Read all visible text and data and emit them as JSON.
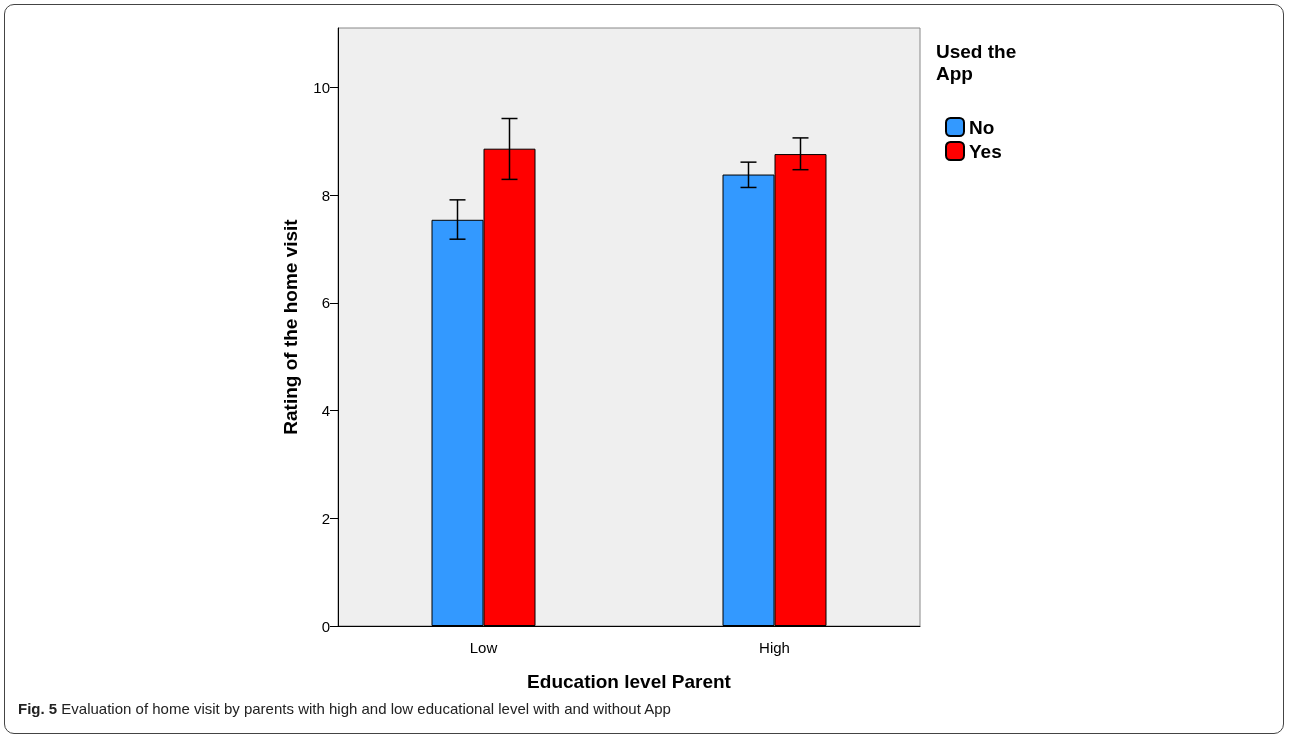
{
  "chart_data": {
    "type": "bar",
    "xlabel": "Education level Parent",
    "ylabel": "Rating of the home visit",
    "legend_title": "Used the App",
    "categories": [
      "Low",
      "High"
    ],
    "series": [
      {
        "name": "No",
        "color": "#3399ff",
        "values": [
          7.54,
          8.38
        ],
        "errors": [
          [
            7.18,
            7.91
          ],
          [
            8.14,
            8.61
          ]
        ]
      },
      {
        "name": "Yes",
        "color": "#ff0000",
        "values": [
          8.86,
          8.76
        ],
        "errors": [
          [
            8.29,
            9.42
          ],
          [
            8.47,
            9.06
          ]
        ]
      }
    ],
    "ylim": [
      0,
      11.1
    ],
    "yticks": [
      0,
      2,
      4,
      6,
      8,
      10
    ],
    "grid": false,
    "legend": "right",
    "annotations": [
      "Fig. 5 Evaluation of home visit by parents with high and low educational level with and without App"
    ]
  }
}
